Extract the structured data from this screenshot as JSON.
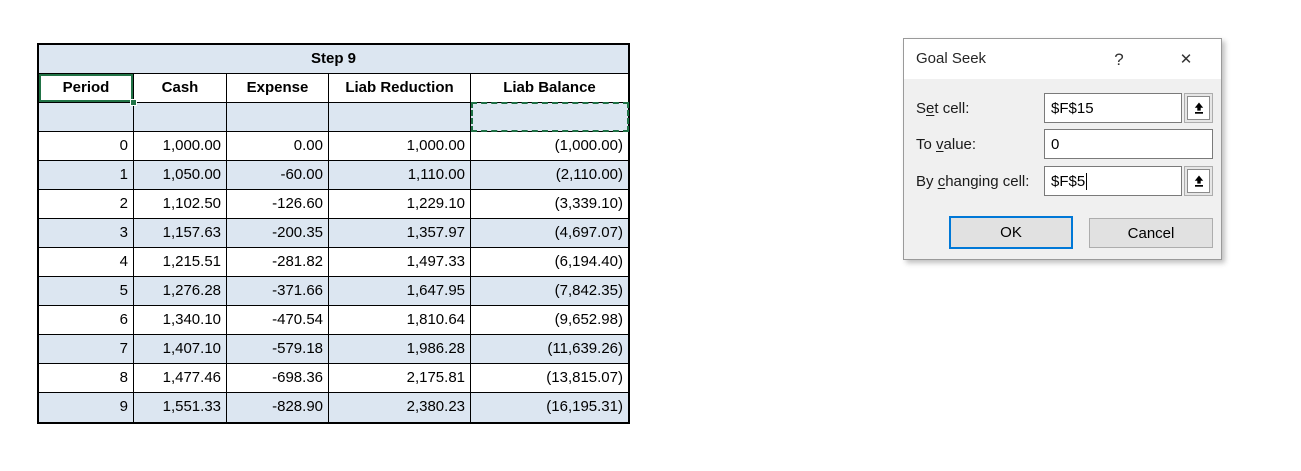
{
  "table": {
    "title": "Step 9",
    "columns": [
      "Period",
      "Cash",
      "Expense",
      "Liab Reduction",
      "Liab Balance"
    ],
    "rows": [
      [
        "0",
        "1,000.00",
        "0.00",
        "1,000.00",
        "(1,000.00)"
      ],
      [
        "1",
        "1,050.00",
        "-60.00",
        "1,110.00",
        "(2,110.00)"
      ],
      [
        "2",
        "1,102.50",
        "-126.60",
        "1,229.10",
        "(3,339.10)"
      ],
      [
        "3",
        "1,157.63",
        "-200.35",
        "1,357.97",
        "(4,697.07)"
      ],
      [
        "4",
        "1,215.51",
        "-281.82",
        "1,497.33",
        "(6,194.40)"
      ],
      [
        "5",
        "1,276.28",
        "-371.66",
        "1,647.95",
        "(7,842.35)"
      ],
      [
        "6",
        "1,340.10",
        "-470.54",
        "1,810.64",
        "(9,652.98)"
      ],
      [
        "7",
        "1,407.10",
        "-579.18",
        "1,986.28",
        "(11,639.26)"
      ],
      [
        "8",
        "1,477.46",
        "-698.36",
        "2,175.81",
        "(13,815.07)"
      ],
      [
        "9",
        "1,551.33",
        "-828.90",
        "2,380.23",
        "(16,195.31)"
      ]
    ],
    "active_cell": {
      "row": "header",
      "col": 0
    },
    "marching_ants_cell": {
      "row": "spacer",
      "col": 4
    }
  },
  "dialog": {
    "title": "Goal Seek",
    "help_icon": "?",
    "close_icon": "✕",
    "fields": [
      {
        "key": "set-cell",
        "label": [
          "S",
          "e",
          "t cell:"
        ],
        "value": "$F$15",
        "picker": true,
        "caret": false
      },
      {
        "key": "to-value",
        "label": [
          "To ",
          "v",
          "alue:"
        ],
        "value": "0",
        "picker": false,
        "caret": false
      },
      {
        "key": "by-changing-cell",
        "label": [
          "By ",
          "c",
          "hanging cell:"
        ],
        "value": "$F$5",
        "picker": true,
        "caret": true
      }
    ],
    "ok_label": "OK",
    "cancel_label": "Cancel"
  },
  "colors": {
    "band_blue": "#dce6f1",
    "excel_green": "#217346",
    "ok_focus_border": "#0078d7"
  }
}
